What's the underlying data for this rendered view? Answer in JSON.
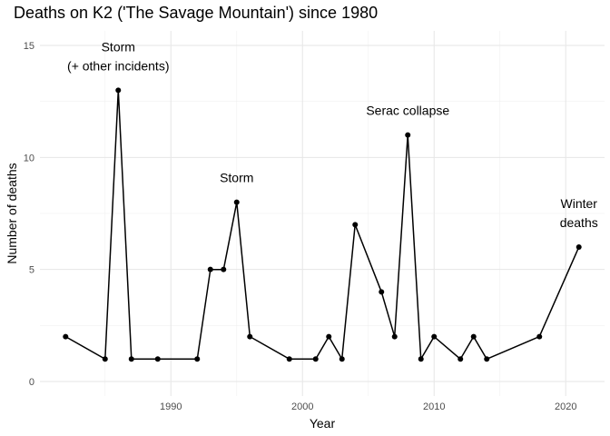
{
  "chart_data": {
    "type": "line",
    "title": "Deaths on K2 ('The Savage Mountain') since 1980",
    "xlabel": "Year",
    "ylabel": "Number of deaths",
    "xlim": [
      1980,
      2023
    ],
    "ylim": [
      0,
      16
    ],
    "x_ticks": [
      1990,
      2000,
      2010,
      2020
    ],
    "y_ticks": [
      0,
      5,
      10,
      15
    ],
    "grid": true,
    "legend": "none",
    "x": [
      1982,
      1985,
      1986,
      1987,
      1989,
      1992,
      1993,
      1994,
      1995,
      1996,
      1999,
      2001,
      2002,
      2003,
      2004,
      2006,
      2007,
      2008,
      2009,
      2010,
      2012,
      2013,
      2014,
      2018,
      2021
    ],
    "y": [
      2,
      1,
      13,
      1,
      1,
      1,
      5,
      5,
      8,
      2,
      1,
      1,
      2,
      1,
      7,
      4,
      2,
      11,
      1,
      2,
      1,
      2,
      1,
      2,
      6
    ],
    "annotations": [
      {
        "lines": [
          "Storm",
          "(+ other incidents)"
        ],
        "x": 1986,
        "y": 13
      },
      {
        "lines": [
          "Storm"
        ],
        "x": 1995,
        "y": 8
      },
      {
        "lines": [
          "Serac collapse"
        ],
        "x": 2008,
        "y": 11
      },
      {
        "lines": [
          "Winter",
          "deaths"
        ],
        "x": 2021,
        "y": 6
      }
    ]
  }
}
